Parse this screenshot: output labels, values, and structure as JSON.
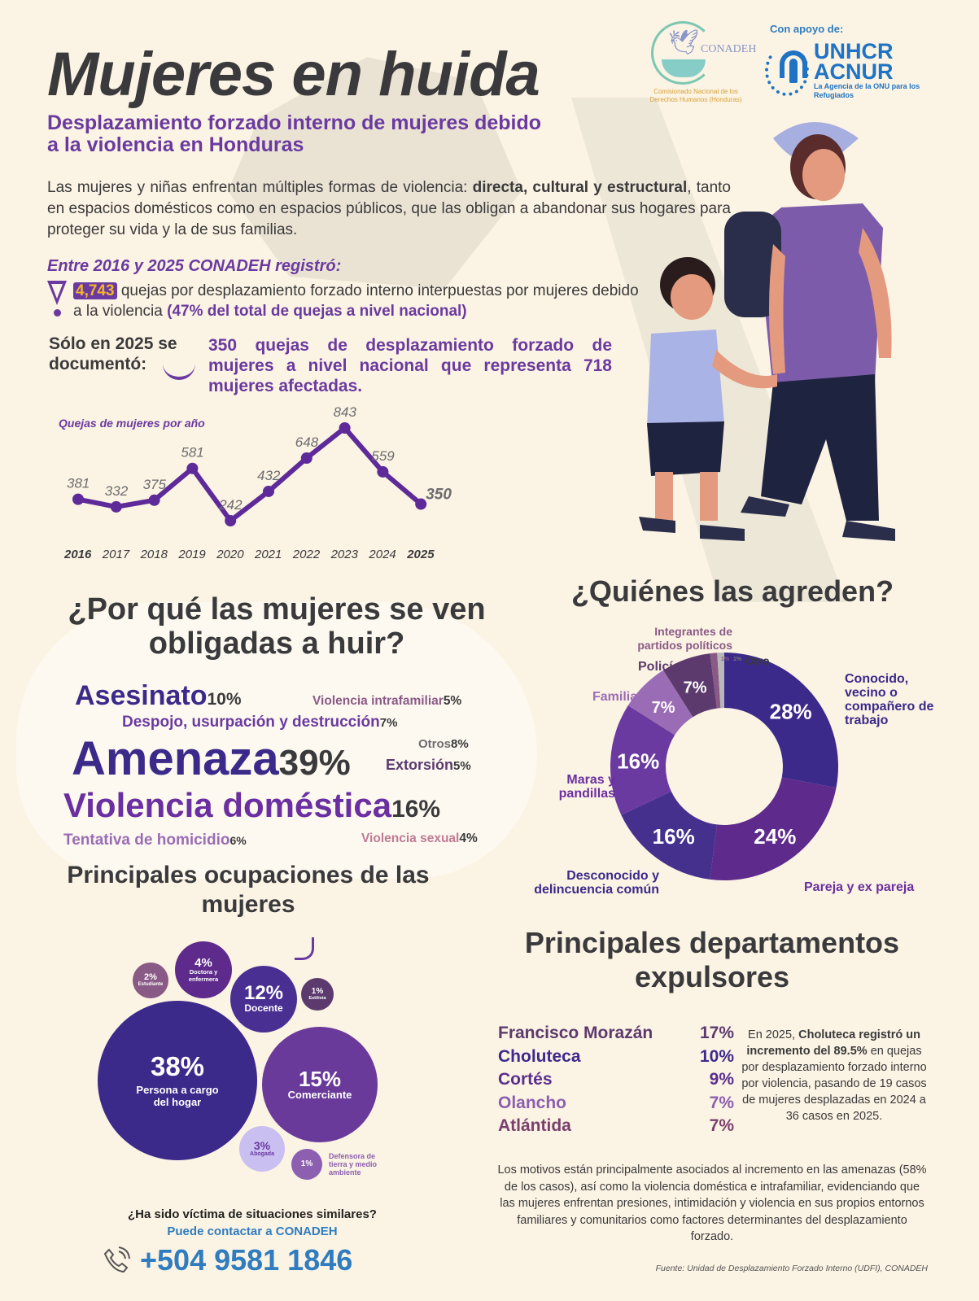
{
  "header": {
    "title": "Mujeres en huida",
    "subtitle": "Desplazamiento forzado interno de mujeres debido a la violencia en Honduras",
    "intro_pre": "Las mujeres y niñas enfrentan múltiples formas de violencia: ",
    "intro_bold1": "directa, cultural y estructural",
    "intro_post": ", tanto en espacios domésticos como en espacios públicos, que las obligan a abandonar sus hogares para proteger su vida y la de sus familias."
  },
  "logos": {
    "conadeh_name": "CONADEH",
    "conadeh_sub": "Comisionado Nacional de los Derechos Humanos (Honduras)",
    "apoyo": "Con apoyo de:",
    "unhcr_line1": "UNHCR",
    "unhcr_line2": "ACNUR",
    "unhcr_sub": "La Agencia de la ONU para los Refugiados"
  },
  "stats": {
    "entre": "Entre 2016 y 2025 CONADEH registró:",
    "total": "4,743",
    "total_text": " quejas por desplazamiento forzado interno interpuestas por mujeres debido a la violencia ",
    "total_highlight": "(47% del total de quejas a nivel nacional)",
    "solo_label": "Sólo en 2025 se documentó:",
    "solo_text": "350 quejas de desplazamiento forzado de mujeres a nivel nacional que representa 718 mujeres afectadas."
  },
  "causes": {
    "title": "¿Por qué las mujeres se ven obligadas a huir?",
    "items": [
      {
        "label": "Asesinato",
        "pct": "10%"
      },
      {
        "label": "Violencia intrafamiliar",
        "pct": "5%"
      },
      {
        "label": "Despojo, usurpación y destrucción",
        "pct": "7%"
      },
      {
        "label": "Amenaza",
        "pct": "39%"
      },
      {
        "label": "Otros",
        "pct": "8%"
      },
      {
        "label": "Extorsión",
        "pct": "5%"
      },
      {
        "label": "Violencia doméstica",
        "pct": "16%"
      },
      {
        "label": "Tentativa de homicidio",
        "pct": "6%"
      },
      {
        "label": "Violencia sexual",
        "pct": "4%"
      }
    ]
  },
  "aggressors": {
    "title": "¿Quiénes las agreden?",
    "labels": {
      "conocido": "Conocido, vecino o compañero de trabajo",
      "pareja": "Pareja y ex pareja",
      "desconocido": "Desconocido y delincuencia común",
      "maras": "Maras y pandillas",
      "familiar": "Familiar",
      "policias": "Policías",
      "partidos": "Integrantes de partidos políticos",
      "otro": "Otro"
    }
  },
  "occupations": {
    "title": "Principales ocupaciones de las mujeres",
    "items": [
      {
        "pct": "38%",
        "label": "Persona a cargo del hogar"
      },
      {
        "pct": "15%",
        "label": "Comerciante"
      },
      {
        "pct": "12%",
        "label": "Docente"
      },
      {
        "pct": "4%",
        "label": "Doctora y enfermera"
      },
      {
        "pct": "3%",
        "label": "Abogada"
      },
      {
        "pct": "2%",
        "label": "Estudiante"
      },
      {
        "pct": "1%",
        "label": "Estilista"
      },
      {
        "pct": "1%",
        "label": "Defensora de tierra y medio ambiente"
      }
    ]
  },
  "departments": {
    "title": "Principales departamentos expulsores",
    "items": [
      {
        "name": "Francisco Morazán",
        "pct": "17%",
        "color": "#5c3a6e"
      },
      {
        "name": "Choluteca",
        "pct": "10%",
        "color": "#3d2a8c"
      },
      {
        "name": "Cortés",
        "pct": "9%",
        "color": "#5a2f8f"
      },
      {
        "name": "Olancho",
        "pct": "7%",
        "color": "#8c5fb0"
      },
      {
        "name": "Atlántida",
        "pct": "7%",
        "color": "#7a3f6e"
      }
    ],
    "note_pre": "En 2025, ",
    "note_bold": "Choluteca registró un incremento del 89.5%",
    "note_post": " en quejas por desplazamiento forzado interno por violencia, pasando de 19 casos de mujeres desplazadas en 2024 a 36 casos en 2025.",
    "motivos": "Los motivos están principalmente asociados al incremento en las amenazas (58% de los casos), así como la violencia doméstica e intrafamiliar, evidenciando que las mujeres enfrentan presiones, intimidación y violencia en sus propios entornos familiares y comunitarios como factores determinantes del desplazamiento forzado."
  },
  "contact": {
    "question": "¿Ha sido víctima de situaciones similares?",
    "sub": "Puede contactar a CONADEH",
    "phone": "+504 9581 1846",
    "icon": "phone-icon"
  },
  "source": "Fuente: Unidad de Desplazamiento Forzado Interno (UDFI), CONADEH",
  "colors": {
    "background": "#fbf3e3",
    "primary_purple": "#6a3aa0",
    "dark_indigo": "#3b2a8a",
    "orange_accent": "#f3b52a",
    "unhcr_blue": "#1e73c4"
  },
  "chart_data": [
    {
      "type": "line",
      "title": "Quejas de mujeres por año",
      "x": [
        "2016",
        "2017",
        "2018",
        "2019",
        "2020",
        "2021",
        "2022",
        "2023",
        "2024",
        "2025"
      ],
      "values": [
        381,
        332,
        375,
        581,
        242,
        432,
        648,
        843,
        559,
        350
      ],
      "xlabel": "",
      "ylabel": "",
      "grid": false,
      "data_labels": true
    },
    {
      "type": "pie",
      "title": "¿Quiénes las agreden?",
      "categories": [
        "Conocido, vecino o compañero de trabajo",
        "Pareja y ex pareja",
        "Desconocido y delincuencia común",
        "Maras y pandillas",
        "Familiar",
        "Policías",
        "Integrantes de partidos políticos",
        "Otro"
      ],
      "values": [
        28,
        24,
        16,
        16,
        7,
        7,
        1,
        1
      ],
      "unit": "%",
      "donut": true
    },
    {
      "type": "bar",
      "title": "¿Por qué las mujeres se ven obligadas a huir? (word cloud)",
      "categories": [
        "Amenaza",
        "Violencia doméstica",
        "Asesinato",
        "Otros",
        "Despojo, usurpación y destrucción",
        "Tentativa de homicidio",
        "Violencia intrafamiliar",
        "Extorsión",
        "Violencia sexual"
      ],
      "values": [
        39,
        16,
        10,
        8,
        7,
        6,
        5,
        5,
        4
      ],
      "unit": "%"
    },
    {
      "type": "bar",
      "title": "Principales ocupaciones de las mujeres (bubbles)",
      "categories": [
        "Persona a cargo del hogar",
        "Comerciante",
        "Docente",
        "Doctora y enfermera",
        "Abogada",
        "Estudiante",
        "Estilista",
        "Defensora de tierra y medio ambiente"
      ],
      "values": [
        38,
        15,
        12,
        4,
        3,
        2,
        1,
        1
      ],
      "unit": "%"
    },
    {
      "type": "table",
      "title": "Principales departamentos expulsores",
      "categories": [
        "Francisco Morazán",
        "Choluteca",
        "Cortés",
        "Olancho",
        "Atlántida"
      ],
      "values": [
        17,
        10,
        9,
        7,
        7
      ],
      "unit": "%"
    }
  ]
}
